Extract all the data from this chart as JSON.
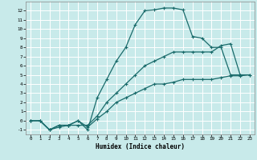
{
  "xlabel": "Humidex (Indice chaleur)",
  "bg_color": "#c8eaea",
  "grid_color": "#ffffff",
  "line_color": "#1a6b6b",
  "xlim": [
    -0.5,
    23.5
  ],
  "ylim": [
    -1.5,
    13.0
  ],
  "xticks": [
    0,
    1,
    2,
    3,
    4,
    5,
    6,
    7,
    8,
    9,
    10,
    11,
    12,
    13,
    14,
    15,
    16,
    17,
    18,
    19,
    20,
    21,
    22,
    23
  ],
  "yticks": [
    -1,
    0,
    1,
    2,
    3,
    4,
    5,
    6,
    7,
    8,
    9,
    10,
    11,
    12
  ],
  "line1_x": [
    0,
    1,
    2,
    3,
    4,
    5,
    6,
    7,
    8,
    9,
    10,
    11,
    12,
    13,
    14,
    15,
    16,
    17,
    18,
    19,
    20,
    21,
    22
  ],
  "line1_y": [
    0,
    0,
    -1,
    -0.5,
    -0.5,
    0,
    -1,
    2.5,
    4.5,
    6.5,
    8,
    10.5,
    12,
    12.1,
    12.3,
    12.3,
    12.1,
    9.2,
    9,
    8,
    8,
    5,
    5
  ],
  "line2_x": [
    0,
    1,
    2,
    3,
    4,
    5,
    6,
    7,
    8,
    9,
    10,
    11,
    12,
    13,
    14,
    15,
    16,
    17,
    18,
    19,
    20,
    21,
    22,
    23
  ],
  "line2_y": [
    0,
    0,
    -1,
    -0.7,
    -0.5,
    -0.5,
    -0.5,
    0.5,
    2,
    3,
    4,
    5,
    6,
    6.5,
    7,
    7.5,
    7.5,
    7.5,
    7.5,
    7.5,
    8.2,
    8.4,
    5,
    5
  ],
  "line3_x": [
    0,
    1,
    2,
    3,
    4,
    5,
    6,
    7,
    8,
    9,
    10,
    11,
    12,
    13,
    14,
    15,
    16,
    17,
    18,
    19,
    20,
    21,
    22,
    23
  ],
  "line3_y": [
    0,
    0,
    -1,
    -0.5,
    -0.5,
    0,
    -0.7,
    0.2,
    1,
    2,
    2.5,
    3,
    3.5,
    4,
    4,
    4.2,
    4.5,
    4.5,
    4.5,
    4.5,
    4.7,
    4.9,
    4.9,
    5
  ]
}
